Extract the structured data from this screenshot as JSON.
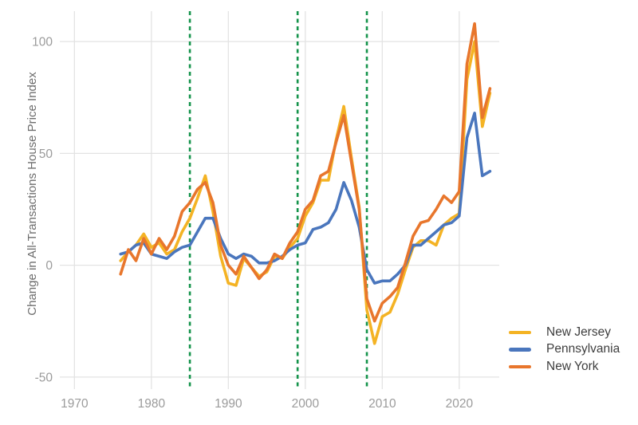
{
  "chart_data": {
    "type": "line",
    "title": "",
    "xlabel": "",
    "ylabel": "Change in All-Transactions House Price Index",
    "grid": true,
    "legend_position": "right-bottom",
    "x_ticks": [
      1970,
      1980,
      1990,
      2000,
      2010,
      2020
    ],
    "y_ticks": [
      -50,
      0,
      50,
      100
    ],
    "xlim": [
      1968.1,
      2025.2
    ],
    "ylim": [
      -52.9,
      113.6
    ],
    "x": [
      1976,
      1977,
      1978,
      1979,
      1980,
      1981,
      1982,
      1983,
      1984,
      1985,
      1986,
      1987,
      1988,
      1989,
      1990,
      1991,
      1992,
      1993,
      1994,
      1995,
      1996,
      1997,
      1998,
      1999,
      2000,
      2001,
      2002,
      2003,
      2004,
      2005,
      2006,
      2007,
      2008,
      2009,
      2010,
      2011,
      2012,
      2013,
      2014,
      2015,
      2016,
      2017,
      2018,
      2019,
      2020,
      2021,
      2022,
      2023,
      2024
    ],
    "series": [
      {
        "name": "New Jersey",
        "color": "#F4B324",
        "values": [
          2,
          6,
          9,
          14,
          8,
          10,
          5,
          7,
          15,
          21,
          30,
          40,
          24,
          4,
          -8,
          -9,
          3,
          -1,
          -5,
          -3,
          4,
          3,
          8,
          12,
          22,
          28,
          38,
          38,
          56,
          71,
          48,
          26,
          -20,
          -35,
          -23,
          -21,
          -13,
          -2,
          8,
          11,
          11,
          9,
          18,
          21,
          23,
          83,
          100,
          62,
          77
        ]
      },
      {
        "name": "Pennsylvania",
        "color": "#4A76BD",
        "values": [
          5,
          6,
          9,
          10,
          5,
          4,
          3,
          6,
          8,
          9,
          15,
          21,
          21,
          12,
          5,
          3,
          5,
          4,
          1,
          1,
          2,
          4,
          7,
          9,
          10,
          16,
          17,
          19,
          25,
          37,
          29,
          17,
          -2,
          -8,
          -7,
          -7,
          -4,
          0,
          9,
          9,
          12,
          15,
          18,
          19,
          22,
          57,
          68,
          40,
          42
        ]
      },
      {
        "name": "New York",
        "color": "#E8762C",
        "values": [
          -4,
          7,
          2,
          12,
          5,
          12,
          7,
          13,
          24,
          28,
          34,
          37,
          28,
          9,
          0,
          -4,
          4,
          -1,
          -6,
          -2,
          5,
          3,
          10,
          15,
          25,
          29,
          40,
          42,
          55,
          67,
          46,
          25,
          -15,
          -25,
          -17,
          -14,
          -10,
          1,
          13,
          19,
          20,
          25,
          31,
          28,
          33,
          90,
          108,
          66,
          79
        ]
      }
    ],
    "vlines": {
      "x": [
        1985,
        1999,
        2008
      ],
      "color": "#14934B",
      "style": "dashed"
    },
    "colors": {
      "gridline": "#e3e3e3",
      "tick_label": "#9b9b9b",
      "axis_title": "#6e6e6e",
      "legend_text": "#3e3e3e",
      "background": "#ffffff"
    }
  },
  "legend": {
    "items": [
      "New Jersey",
      "Pennsylvania",
      "New York"
    ]
  }
}
